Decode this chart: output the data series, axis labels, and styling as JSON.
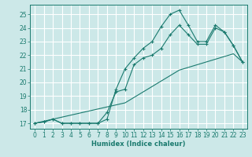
{
  "xlabel": "Humidex (Indice chaleur)",
  "bg_color": "#cce8e8",
  "grid_color": "#ffffff",
  "line_color": "#1a7a6e",
  "xlim": [
    -0.5,
    23.5
  ],
  "ylim": [
    16.6,
    25.7
  ],
  "xticks": [
    0,
    1,
    2,
    3,
    4,
    5,
    6,
    7,
    8,
    9,
    10,
    11,
    12,
    13,
    14,
    15,
    16,
    17,
    18,
    19,
    20,
    21,
    22,
    23
  ],
  "yticks": [
    17,
    18,
    19,
    20,
    21,
    22,
    23,
    24,
    25
  ],
  "line1_y": [
    17.0,
    17.1,
    17.3,
    17.0,
    17.0,
    17.0,
    17.0,
    17.0,
    17.3,
    19.5,
    21.0,
    21.8,
    22.5,
    23.0,
    24.1,
    25.0,
    25.3,
    24.2,
    23.0,
    23.0,
    24.2,
    23.7,
    22.7,
    21.5
  ],
  "line2_y": [
    17.0,
    17.1,
    17.3,
    17.0,
    17.0,
    17.0,
    17.0,
    17.0,
    17.8,
    19.3,
    19.5,
    21.3,
    21.8,
    22.0,
    22.5,
    23.5,
    24.2,
    23.5,
    22.8,
    22.8,
    24.0,
    23.7,
    22.7,
    21.5
  ],
  "line3_y": [
    17.0,
    17.15,
    17.3,
    17.45,
    17.6,
    17.75,
    17.9,
    18.05,
    18.2,
    18.35,
    18.5,
    18.9,
    19.3,
    19.7,
    20.1,
    20.5,
    20.9,
    21.1,
    21.3,
    21.5,
    21.7,
    21.9,
    22.1,
    21.5
  ]
}
